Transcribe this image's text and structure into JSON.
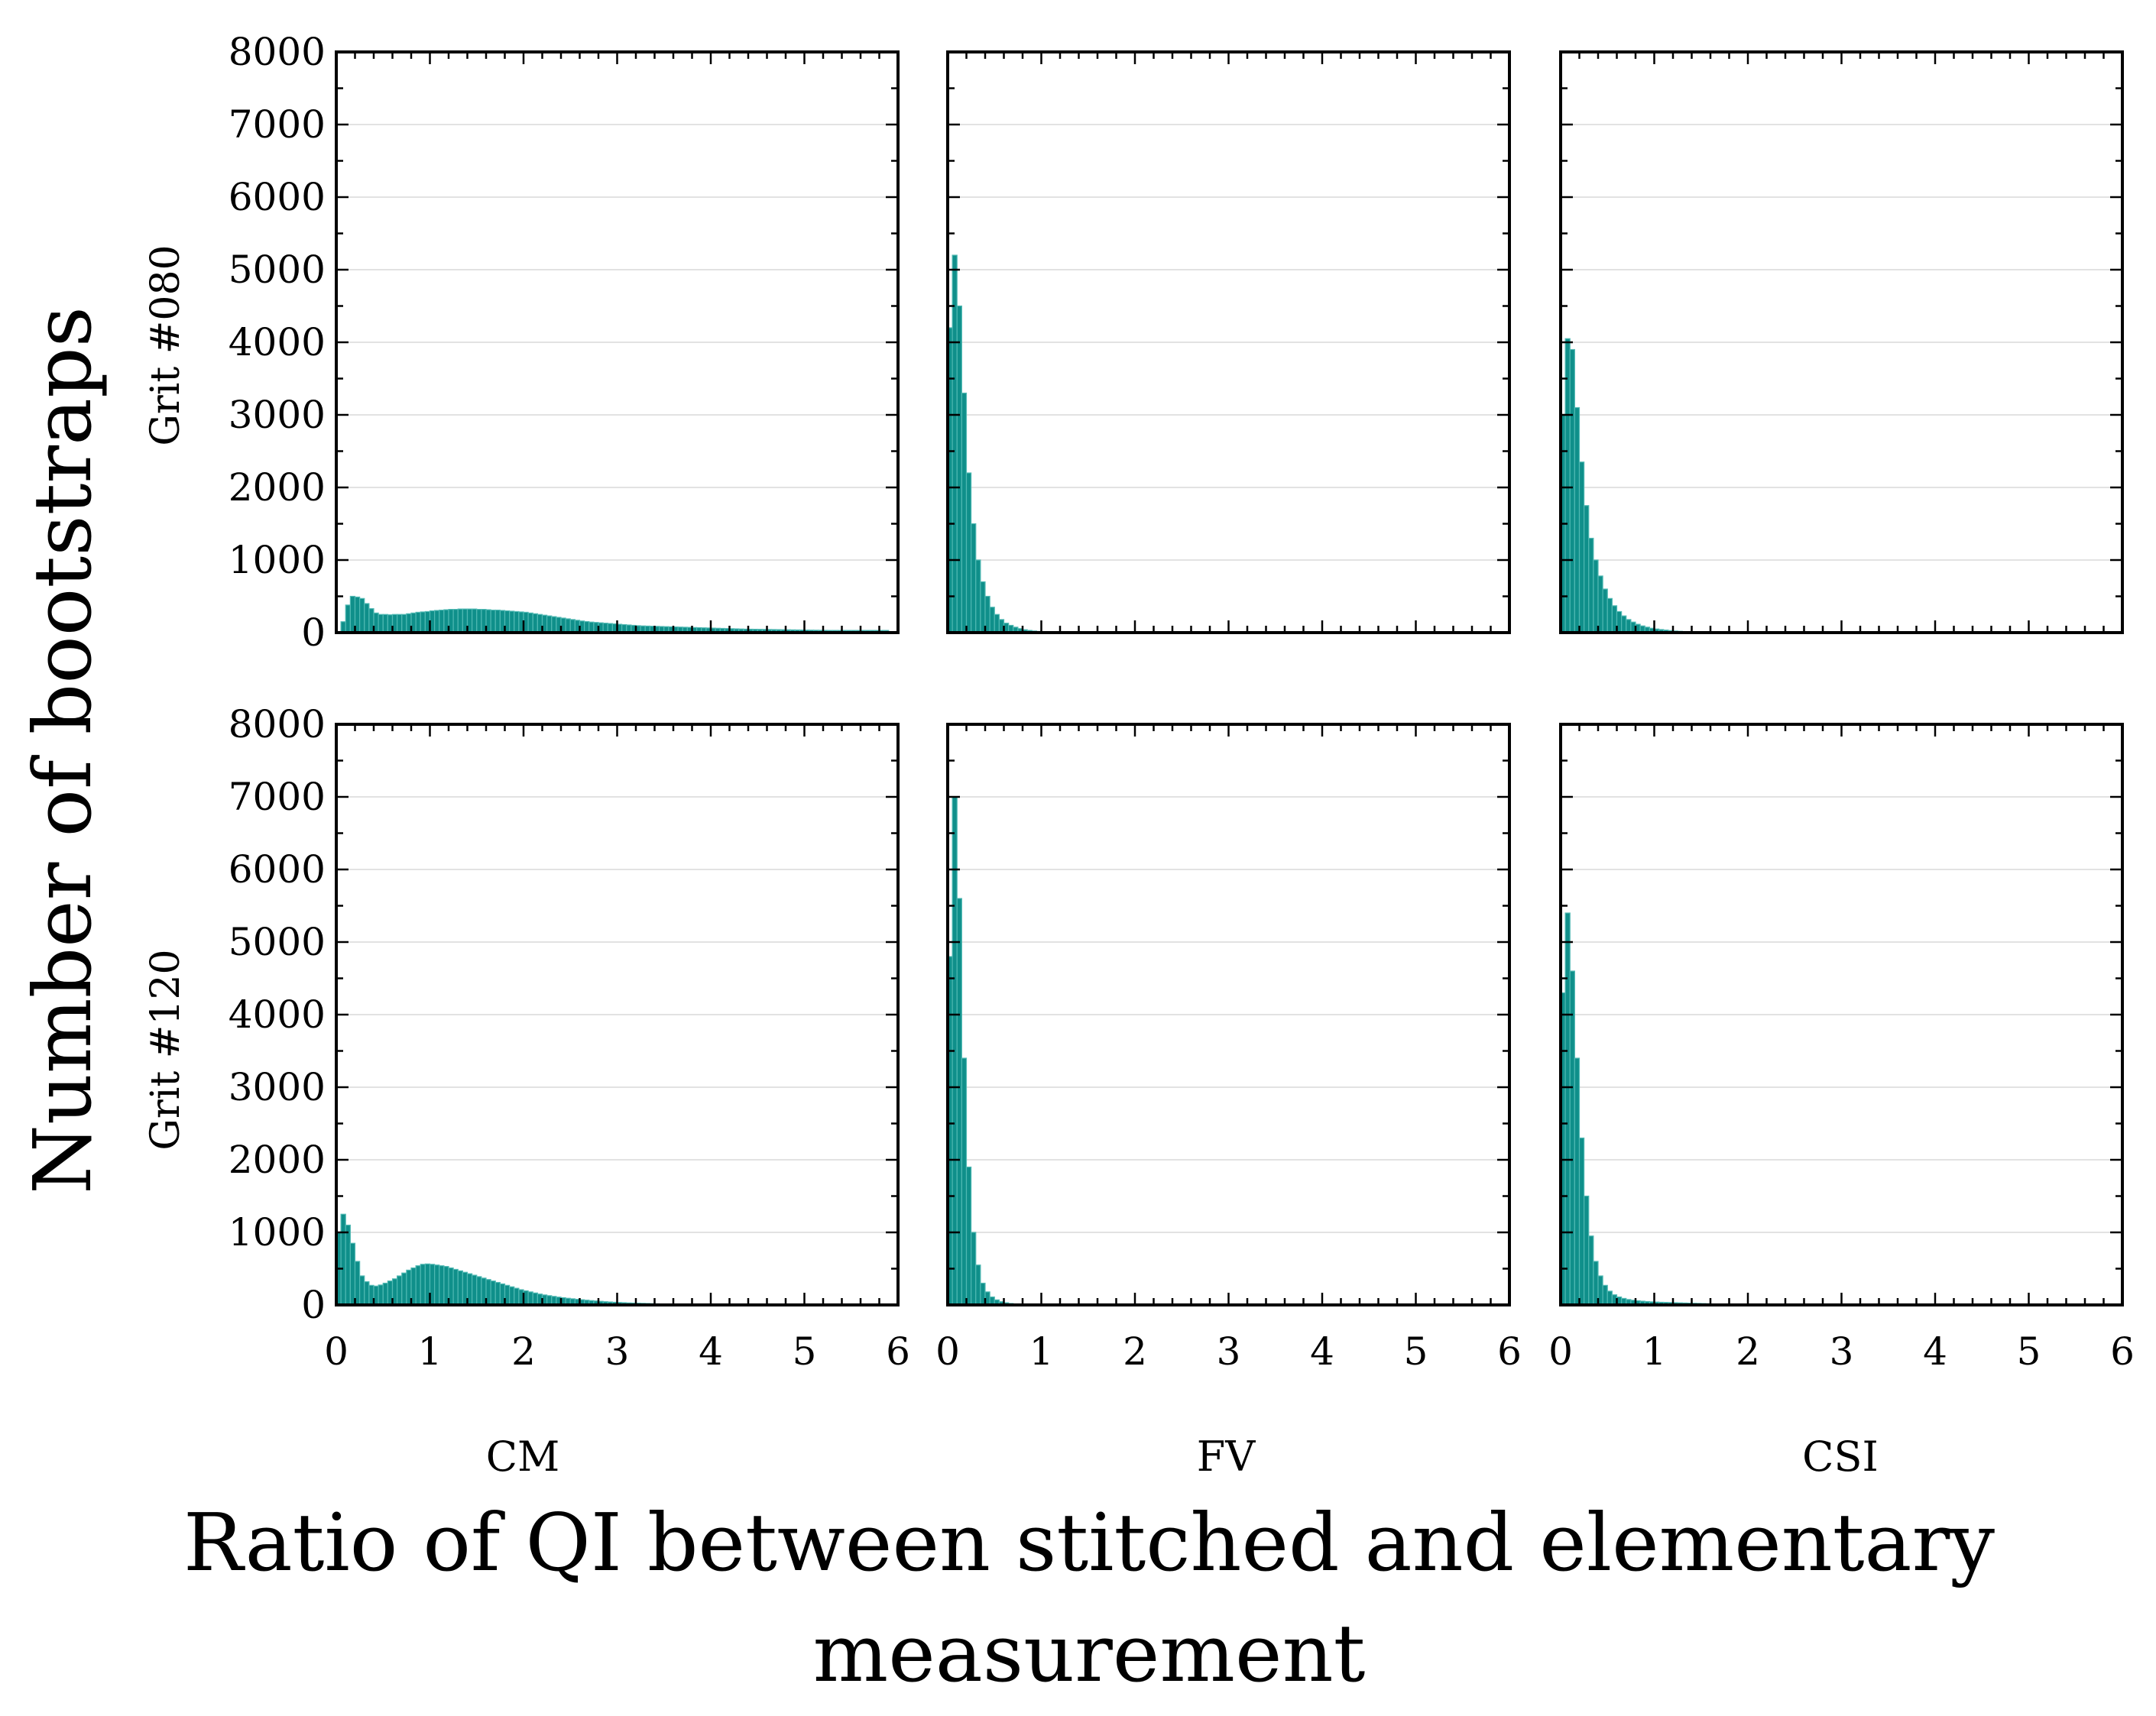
{
  "chart_data": {
    "type": "bar",
    "title": "",
    "ylabel": "Number of bootstraps",
    "xlabel_lines": [
      "Ratio of QI between stitched and elementary",
      "measurement"
    ],
    "column_labels": [
      "CM",
      "FV",
      "CSI"
    ],
    "row_labels": [
      "Grit #080",
      "Grit #120"
    ],
    "xlim": [
      0,
      6
    ],
    "ylim": [
      0,
      8000
    ],
    "x_ticks": [
      "0",
      "1",
      "2",
      "3",
      "4",
      "5",
      "6"
    ],
    "y_ticks": [
      "0",
      "1000",
      "2000",
      "3000",
      "4000",
      "5000",
      "6000",
      "7000",
      "8000"
    ],
    "grid": true,
    "bar_color": "#0f8f8a",
    "bin_width": 0.05,
    "panels": [
      {
        "row": "Grit #080",
        "column": "CM",
        "bin_start": 0.05,
        "values": [
          150,
          380,
          500,
          490,
          470,
          400,
          330,
          270,
          250,
          250,
          245,
          250,
          250,
          250,
          260,
          270,
          280,
          285,
          290,
          300,
          305,
          310,
          315,
          320,
          320,
          325,
          325,
          325,
          325,
          320,
          320,
          315,
          310,
          310,
          305,
          300,
          295,
          290,
          285,
          280,
          270,
          260,
          250,
          240,
          230,
          220,
          210,
          200,
          190,
          180,
          170,
          160,
          152,
          145,
          140,
          135,
          130,
          125,
          120,
          115,
          110,
          105,
          100,
          95,
          92,
          90,
          88,
          86,
          84,
          82,
          80,
          78,
          76,
          74,
          72,
          70,
          68,
          66,
          64,
          62,
          60,
          58,
          56,
          54,
          52,
          50,
          48,
          47,
          46,
          45,
          44,
          43,
          42,
          41,
          40,
          39,
          38,
          37,
          36,
          35,
          34,
          33,
          32,
          31,
          30,
          30,
          30,
          30,
          30,
          30,
          30,
          30,
          30,
          30,
          30,
          30,
          30
        ]
      },
      {
        "row": "Grit #080",
        "column": "FV",
        "bin_start": 0.0,
        "values": [
          4200,
          5200,
          4500,
          3300,
          2200,
          1500,
          1000,
          700,
          500,
          350,
          250,
          180,
          130,
          100,
          75,
          55,
          40,
          30,
          22,
          16,
          12,
          9,
          7,
          5,
          4,
          3,
          2,
          1
        ]
      },
      {
        "row": "Grit #080",
        "column": "CSI",
        "bin_start": 0.0,
        "values": [
          3000,
          4050,
          3900,
          3100,
          2350,
          1750,
          1300,
          1000,
          780,
          600,
          470,
          370,
          290,
          230,
          180,
          145,
          115,
          92,
          75,
          60,
          50,
          42,
          35,
          28,
          22,
          18,
          15,
          12,
          10,
          8,
          6,
          5,
          4,
          3
        ]
      },
      {
        "row": "Grit #120",
        "column": "CM",
        "bin_start": 0.0,
        "values": [
          1000,
          1250,
          1100,
          850,
          600,
          400,
          320,
          270,
          260,
          275,
          300,
          330,
          360,
          400,
          440,
          480,
          510,
          540,
          560,
          565,
          560,
          550,
          540,
          530,
          510,
          490,
          470,
          450,
          430,
          410,
          390,
          370,
          350,
          330,
          310,
          290,
          270,
          250,
          230,
          210,
          195,
          180,
          165,
          150,
          138,
          128,
          118,
          108,
          100,
          92,
          85,
          78,
          72,
          66,
          60,
          55,
          50,
          45,
          41,
          37,
          34,
          31,
          28,
          26,
          24,
          22,
          20,
          18,
          16,
          14,
          13,
          12,
          11,
          10,
          9,
          8,
          7,
          6,
          5,
          5,
          4,
          4,
          3,
          3,
          2,
          2,
          2,
          1,
          1,
          1
        ]
      },
      {
        "row": "Grit #120",
        "column": "FV",
        "bin_start": 0.0,
        "values": [
          4800,
          7000,
          5600,
          3400,
          1900,
          1000,
          550,
          300,
          180,
          110,
          70,
          45,
          30,
          20,
          12,
          8,
          5,
          3,
          2,
          1
        ]
      },
      {
        "row": "Grit #120",
        "column": "CSI",
        "bin_start": 0.0,
        "values": [
          4300,
          5400,
          4600,
          3400,
          2300,
          1500,
          950,
          600,
          400,
          270,
          190,
          140,
          110,
          90,
          75,
          65,
          58,
          52,
          47,
          43,
          40,
          37,
          35,
          33,
          31,
          29,
          27,
          25,
          23,
          21,
          19,
          17,
          15,
          13,
          11,
          9,
          7,
          5,
          3,
          2,
          1
        ]
      }
    ]
  }
}
